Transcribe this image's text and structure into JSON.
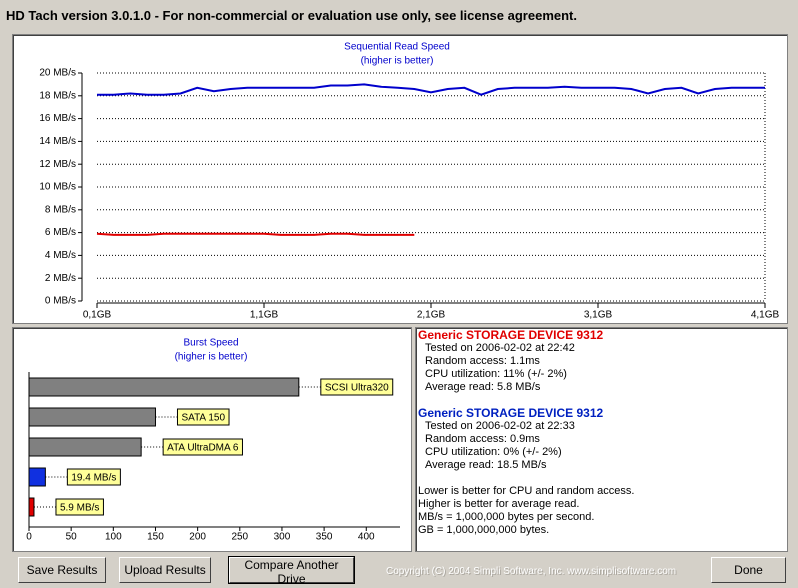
{
  "window": {
    "title": "HD Tach version 3.0.1.0  - For non-commercial or evaluation use only, see license agreement."
  },
  "chart_data": [
    {
      "type": "line",
      "title": "Sequential Read Speed",
      "subtitle": "(higher is better)",
      "x": [
        0.1,
        0.2,
        0.3,
        0.4,
        0.5,
        0.6,
        0.7,
        0.8,
        0.9,
        1.0,
        1.1,
        1.2,
        1.3,
        1.4,
        1.5,
        1.6,
        1.7,
        1.8,
        1.9,
        2.0,
        2.1,
        2.2,
        2.3,
        2.4,
        2.5,
        2.6,
        2.7,
        2.8,
        2.9,
        3.0,
        3.1,
        3.2,
        3.3,
        3.4,
        3.5,
        3.6,
        3.7,
        3.8,
        3.9,
        4.0,
        4.1
      ],
      "series": [
        {
          "color": "#0000cc",
          "values": [
            18.1,
            18.1,
            18.2,
            18.1,
            18.1,
            18.2,
            18.7,
            18.4,
            18.6,
            18.7,
            18.7,
            18.7,
            18.7,
            18.7,
            18.9,
            18.9,
            19.0,
            18.8,
            18.7,
            18.6,
            18.3,
            18.6,
            18.7,
            18.1,
            18.6,
            18.7,
            18.7,
            18.7,
            18.8,
            18.7,
            18.7,
            18.7,
            18.6,
            18.2,
            18.6,
            18.7,
            18.2,
            18.6,
            18.7,
            18.7,
            18.7
          ]
        },
        {
          "color": "#e00000",
          "values": [
            5.9,
            5.8,
            5.8,
            5.8,
            5.9,
            5.9,
            5.9,
            5.9,
            5.9,
            5.9,
            5.9,
            5.8,
            5.8,
            5.8,
            5.9,
            5.9,
            5.8,
            5.8,
            5.8,
            5.8,
            null,
            null,
            null,
            null,
            null,
            null,
            null,
            null,
            null,
            null,
            null,
            null,
            null,
            null,
            null,
            null,
            null,
            null,
            null,
            null,
            null
          ]
        }
      ],
      "xlim": [
        0.1,
        4.1
      ],
      "xticks": [
        {
          "value": 0.1,
          "label": "0,1GB"
        },
        {
          "value": 1.1,
          "label": "1,1GB"
        },
        {
          "value": 2.1,
          "label": "2,1GB"
        },
        {
          "value": 3.1,
          "label": "3,1GB"
        },
        {
          "value": 4.1,
          "label": "4,1GB"
        }
      ],
      "ylim": [
        0,
        20
      ],
      "yticks": [
        {
          "value": 0,
          "label": "0 MB/s"
        },
        {
          "value": 2,
          "label": "2 MB/s"
        },
        {
          "value": 4,
          "label": "4 MB/s"
        },
        {
          "value": 6,
          "label": "6 MB/s"
        },
        {
          "value": 8,
          "label": "8 MB/s"
        },
        {
          "value": 10,
          "label": "10 MB/s"
        },
        {
          "value": 12,
          "label": "12 MB/s"
        },
        {
          "value": 14,
          "label": "14 MB/s"
        },
        {
          "value": 16,
          "label": "16 MB/s"
        },
        {
          "value": 18,
          "label": "18 MB/s"
        },
        {
          "value": 20,
          "label": "20 MB/s"
        }
      ],
      "grid": true
    },
    {
      "type": "hbar",
      "title": "Burst Speed",
      "subtitle": "(higher is better)",
      "categories": [
        "SCSI Ultra320",
        "SATA 150",
        "ATA UltraDMA 6",
        null,
        null
      ],
      "values": [
        320,
        150,
        133,
        19.4,
        5.9
      ],
      "value_labels": [
        null,
        null,
        null,
        "19.4 MB/s",
        "5.9 MB/s"
      ],
      "colors": [
        "#808080",
        "#808080",
        "#808080",
        "#1030e0",
        "#e00000"
      ],
      "xlim": [
        0,
        440
      ],
      "xticks": [
        0,
        50,
        100,
        150,
        200,
        250,
        300,
        350,
        400
      ]
    }
  ],
  "results": [
    {
      "heading": "Generic STORAGE DEVICE 9312",
      "color": "#e00000",
      "lines": [
        "Tested on 2006-02-02 at 22:42",
        "Random access: 1.1ms",
        "CPU utilization: 11% (+/- 2%)",
        "Average read: 5.8 MB/s"
      ]
    },
    {
      "heading": "Generic STORAGE DEVICE 9312",
      "color": "#0020c0",
      "lines": [
        "Tested on 2006-02-02 at 22:33",
        "Random access: 0.9ms",
        "CPU utilization: 0% (+/- 2%)",
        "Average read: 18.5 MB/s"
      ]
    }
  ],
  "notes": [
    "Lower is better for CPU and random access.",
    "Higher is better for average read.",
    "MB/s = 1,000,000 bytes per second.",
    "GB = 1,000,000,000 bytes."
  ],
  "buttons": [
    "Save Results",
    "Upload Results",
    "Compare Another Drive",
    "Done"
  ],
  "copyright": "Copyright (C) 2004 Simpli Software, Inc. www.simplisoftware.com"
}
